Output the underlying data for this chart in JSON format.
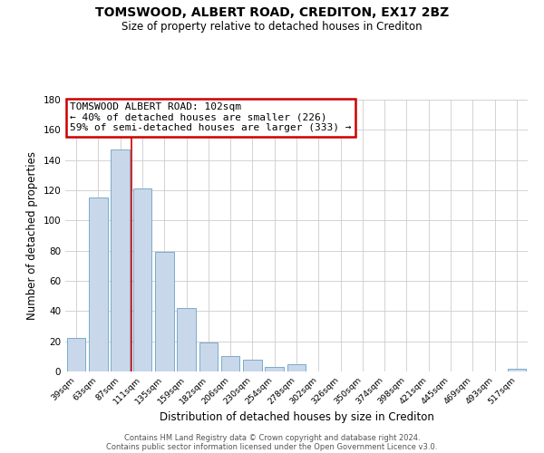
{
  "title": "TOMSWOOD, ALBERT ROAD, CREDITON, EX17 2BZ",
  "subtitle": "Size of property relative to detached houses in Crediton",
  "xlabel": "Distribution of detached houses by size in Crediton",
  "ylabel": "Number of detached properties",
  "bar_labels": [
    "39sqm",
    "63sqm",
    "87sqm",
    "111sqm",
    "135sqm",
    "159sqm",
    "182sqm",
    "206sqm",
    "230sqm",
    "254sqm",
    "278sqm",
    "302sqm",
    "326sqm",
    "350sqm",
    "374sqm",
    "398sqm",
    "421sqm",
    "445sqm",
    "469sqm",
    "493sqm",
    "517sqm"
  ],
  "bar_values": [
    22,
    115,
    147,
    121,
    79,
    42,
    19,
    10,
    8,
    3,
    5,
    0,
    0,
    0,
    0,
    0,
    0,
    0,
    0,
    0,
    2
  ],
  "bar_color": "#c8d8ea",
  "bar_edge_color": "#7aaac8",
  "ylim": [
    0,
    180
  ],
  "yticks": [
    0,
    20,
    40,
    60,
    80,
    100,
    120,
    140,
    160,
    180
  ],
  "annotation_title": "TOMSWOOD ALBERT ROAD: 102sqm",
  "annotation_line1": "← 40% of detached houses are smaller (226)",
  "annotation_line2": "59% of semi-detached houses are larger (333) →",
  "annotation_box_color": "#ffffff",
  "annotation_box_edge": "#cc0000",
  "vertical_line_color": "#cc0000",
  "grid_color": "#cccccc",
  "background_color": "#ffffff",
  "plot_bg_color": "#ffffff",
  "footer1": "Contains HM Land Registry data © Crown copyright and database right 2024.",
  "footer2": "Contains public sector information licensed under the Open Government Licence v3.0."
}
